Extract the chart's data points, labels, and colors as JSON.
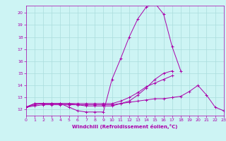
{
  "xlabel": "Windchill (Refroidissement éolien,°C)",
  "bg_color": "#cdf4f4",
  "grid_color": "#aadddd",
  "line_color": "#aa00aa",
  "xlim": [
    0,
    23
  ],
  "ylim": [
    11.5,
    20.6
  ],
  "xticks": [
    0,
    1,
    2,
    3,
    4,
    5,
    6,
    7,
    8,
    9,
    10,
    11,
    12,
    13,
    14,
    15,
    16,
    17,
    18,
    19,
    20,
    21,
    22,
    23
  ],
  "yticks": [
    12,
    13,
    14,
    15,
    16,
    17,
    18,
    19,
    20
  ],
  "series": [
    [
      12.2,
      12.5,
      12.5,
      12.5,
      12.5,
      12.2,
      11.9,
      11.8,
      11.8,
      11.8,
      14.5,
      16.2,
      18.0,
      19.5,
      20.5,
      20.8,
      19.9,
      17.2,
      15.2,
      null,
      null,
      null,
      null,
      null
    ],
    [
      12.2,
      12.5,
      12.5,
      12.5,
      12.5,
      12.5,
      12.4,
      12.3,
      12.3,
      12.3,
      12.3,
      12.5,
      12.7,
      13.2,
      13.8,
      14.5,
      15.0,
      15.2,
      null,
      null,
      null,
      null,
      null,
      null
    ],
    [
      12.2,
      12.4,
      12.5,
      12.5,
      12.5,
      12.5,
      12.5,
      12.5,
      12.5,
      12.5,
      12.5,
      12.7,
      13.0,
      13.4,
      13.9,
      14.2,
      14.5,
      14.8,
      null,
      null,
      null,
      null,
      null,
      null
    ],
    [
      12.2,
      12.3,
      12.4,
      12.4,
      12.4,
      12.4,
      12.4,
      12.4,
      12.4,
      12.4,
      12.4,
      12.5,
      12.6,
      12.7,
      12.8,
      12.9,
      12.9,
      13.0,
      13.1,
      13.5,
      14.0,
      13.2,
      12.2,
      11.9
    ]
  ]
}
